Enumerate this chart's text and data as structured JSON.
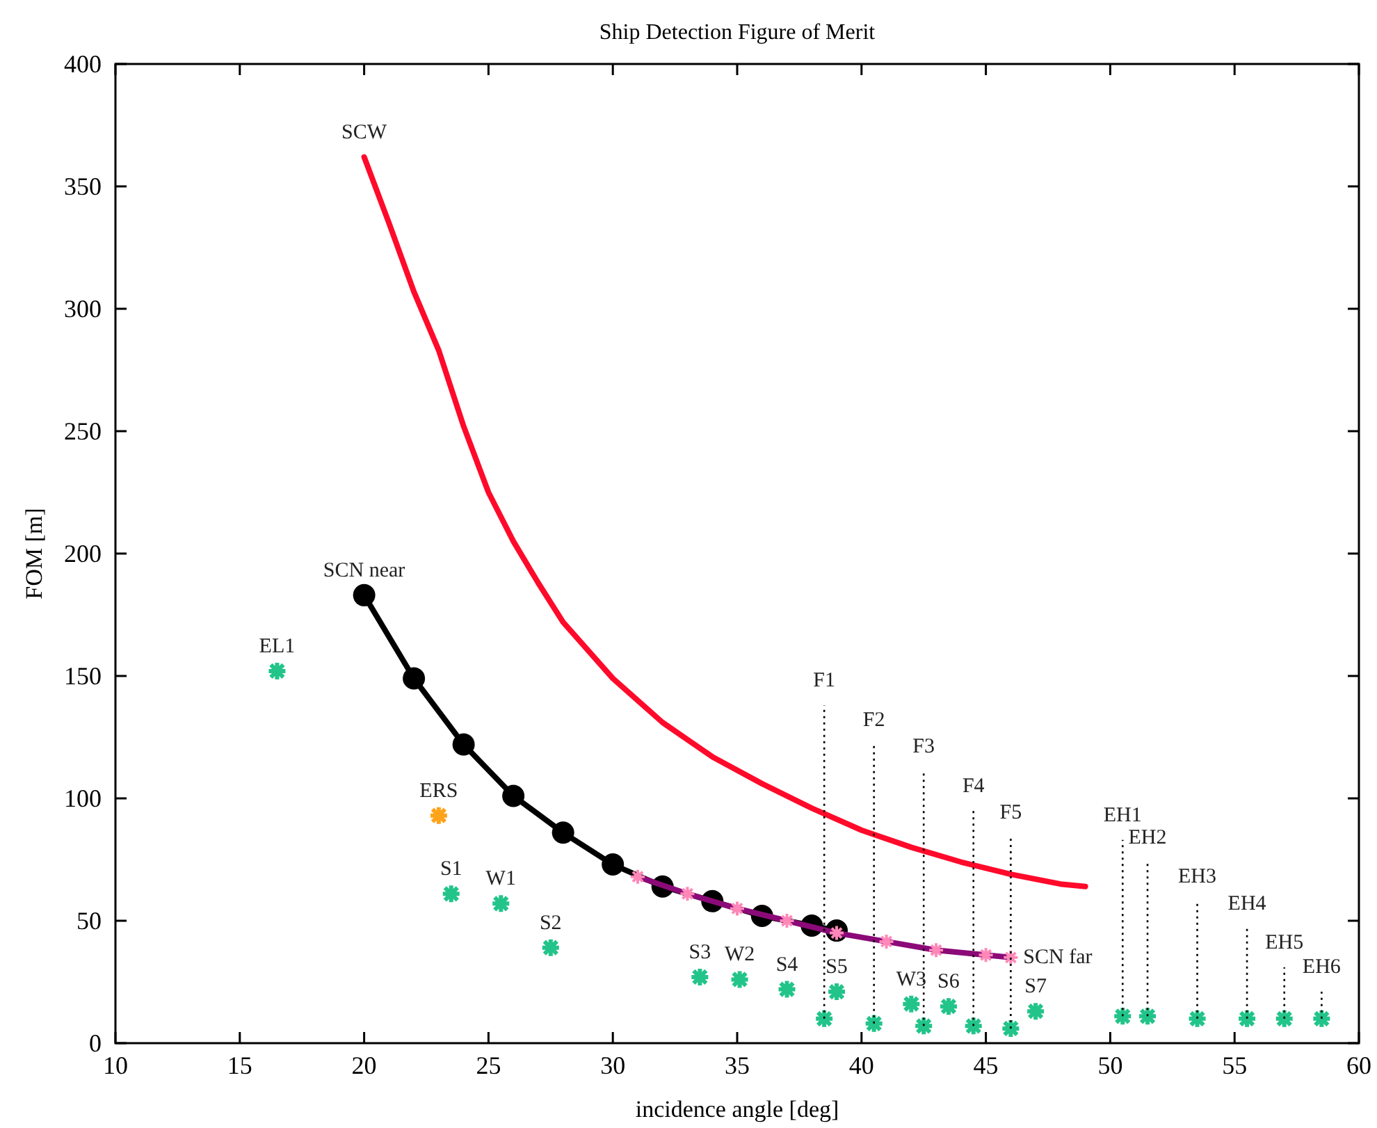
{
  "chart_data": {
    "type": "line",
    "title": "Ship Detection Figure of Merit",
    "xlabel": "incidence angle [deg]",
    "ylabel": "FOM [m]",
    "xlim": [
      10,
      60
    ],
    "xticks": [
      10,
      15,
      20,
      25,
      30,
      35,
      40,
      45,
      50,
      55,
      60
    ],
    "ylim": [
      0,
      400
    ],
    "yticks": [
      0,
      50,
      100,
      150,
      200,
      250,
      300,
      350,
      400
    ],
    "series": [
      {
        "color": "#ff0a2a",
        "marker": "none",
        "x": [
          20,
          21,
          22,
          23,
          24,
          25,
          26,
          27,
          28,
          30,
          32,
          34,
          36,
          38,
          40,
          42,
          44,
          46,
          48,
          49
        ],
        "values": [
          362,
          335,
          307,
          283,
          252,
          225,
          205,
          188,
          172,
          149,
          131,
          117,
          106,
          96,
          87,
          80,
          74,
          69,
          65,
          64
        ]
      },
      {
        "color": "#000000",
        "marker": "circle",
        "x": [
          20,
          22,
          24,
          26,
          28,
          30,
          32,
          34,
          36,
          38,
          39
        ],
        "values": [
          183,
          149,
          122,
          101,
          86,
          73,
          64,
          58,
          52,
          48,
          46
        ]
      },
      {
        "color": "#8b0a78",
        "marker": "cross",
        "x": [
          31,
          33,
          35,
          37,
          39,
          41,
          43,
          45,
          46
        ],
        "values": [
          68,
          61,
          55,
          50,
          45,
          41.5,
          38,
          36,
          35
        ]
      },
      {
        "type": "scatter",
        "marker": "cross",
        "x": [
          16.5,
          23,
          23.5,
          25.5,
          27.5,
          33.5,
          35.1,
          37,
          39,
          38.5,
          40.5,
          42,
          42.5,
          43.5,
          44.5,
          46,
          47,
          50.5,
          51.5,
          53.5,
          55.5,
          57,
          58.5
        ],
        "values": [
          152,
          93,
          61,
          57,
          39,
          27,
          26,
          22,
          21,
          10,
          8,
          16,
          7,
          15,
          7,
          6,
          13,
          11,
          11,
          10,
          10,
          10,
          10
        ],
        "colors": [
          "#22c48a",
          "#ffa31a",
          "#22c48a",
          "#22c48a",
          "#22c48a",
          "#22c48a",
          "#22c48a",
          "#22c48a",
          "#22c48a",
          "#22c48a",
          "#22c48a",
          "#22c48a",
          "#22c48a",
          "#22c48a",
          "#22c48a",
          "#22c48a",
          "#22c48a",
          "#22c48a",
          "#22c48a",
          "#22c48a",
          "#22c48a",
          "#22c48a",
          "#22c48a"
        ]
      },
      {
        "color": "#000000",
        "marker": "none",
        "line_style": "dotted",
        "x": [
          38.5,
          38.5
        ],
        "values": [
          10,
          138
        ]
      },
      {
        "color": "#000000",
        "marker": "none",
        "line_style": "dotted",
        "x": [
          40.5,
          40.5
        ],
        "values": [
          8,
          122
        ]
      },
      {
        "color": "#000000",
        "marker": "none",
        "line_style": "dotted",
        "x": [
          42.5,
          42.5
        ],
        "values": [
          7,
          111
        ]
      },
      {
        "color": "#000000",
        "marker": "none",
        "line_style": "dotted",
        "x": [
          44.5,
          44.5
        ],
        "values": [
          7,
          95
        ]
      },
      {
        "color": "#000000",
        "marker": "none",
        "line_style": "dotted",
        "x": [
          46,
          46
        ],
        "values": [
          6,
          84
        ]
      },
      {
        "color": "#000000",
        "marker": "none",
        "line_style": "dotted",
        "x": [
          50.5,
          50.5
        ],
        "values": [
          11,
          83
        ]
      },
      {
        "color": "#000000",
        "marker": "none",
        "line_style": "dotted",
        "x": [
          51.5,
          51.5
        ],
        "values": [
          11,
          74
        ]
      },
      {
        "color": "#000000",
        "marker": "none",
        "line_style": "dotted",
        "x": [
          53.5,
          53.5
        ],
        "values": [
          10,
          58
        ]
      },
      {
        "color": "#000000",
        "marker": "none",
        "line_style": "dotted",
        "x": [
          55.5,
          55.5
        ],
        "values": [
          10,
          47
        ]
      },
      {
        "color": "#000000",
        "marker": "none",
        "line_style": "dotted",
        "x": [
          57,
          57
        ],
        "values": [
          10,
          31
        ]
      },
      {
        "color": "#000000",
        "marker": "none",
        "line_style": "dotted",
        "x": [
          58.5,
          58.5
        ],
        "values": [
          10,
          21
        ]
      }
    ],
    "annotations": [
      {
        "text": "SCW",
        "x": 20,
        "y": 362
      },
      {
        "text": "SCN near",
        "x": 20,
        "y": 183
      },
      {
        "text": "SCN far",
        "x": 46,
        "y": 35
      },
      {
        "text": "EL1",
        "x": 16.5,
        "y": 152
      },
      {
        "text": "ERS",
        "x": 23,
        "y": 93
      },
      {
        "text": "S1",
        "x": 23.5,
        "y": 61
      },
      {
        "text": "W1",
        "x": 25.5,
        "y": 57
      },
      {
        "text": "S2",
        "x": 27.5,
        "y": 39
      },
      {
        "text": "S3",
        "x": 33.5,
        "y": 27
      },
      {
        "text": "W2",
        "x": 35.1,
        "y": 26
      },
      {
        "text": "S4",
        "x": 37,
        "y": 22
      },
      {
        "text": "S5",
        "x": 39,
        "y": 21
      },
      {
        "text": "W3",
        "x": 42,
        "y": 16
      },
      {
        "text": "S6",
        "x": 43.5,
        "y": 15
      },
      {
        "text": "S7",
        "x": 47,
        "y": 13
      },
      {
        "text": "F1",
        "x": 38.5,
        "y": 138
      },
      {
        "text": "F2",
        "x": 40.5,
        "y": 122
      },
      {
        "text": "F3",
        "x": 42.5,
        "y": 111
      },
      {
        "text": "F4",
        "x": 44.5,
        "y": 95
      },
      {
        "text": "F5",
        "x": 46,
        "y": 84
      },
      {
        "text": "EH1",
        "x": 50.5,
        "y": 83
      },
      {
        "text": "EH2",
        "x": 51.5,
        "y": 74
      },
      {
        "text": "EH3",
        "x": 53.5,
        "y": 58
      },
      {
        "text": "EH4",
        "x": 55.5,
        "y": 47
      },
      {
        "text": "EH5",
        "x": 57,
        "y": 31
      },
      {
        "text": "EH6",
        "x": 58.5,
        "y": 21
      }
    ]
  }
}
